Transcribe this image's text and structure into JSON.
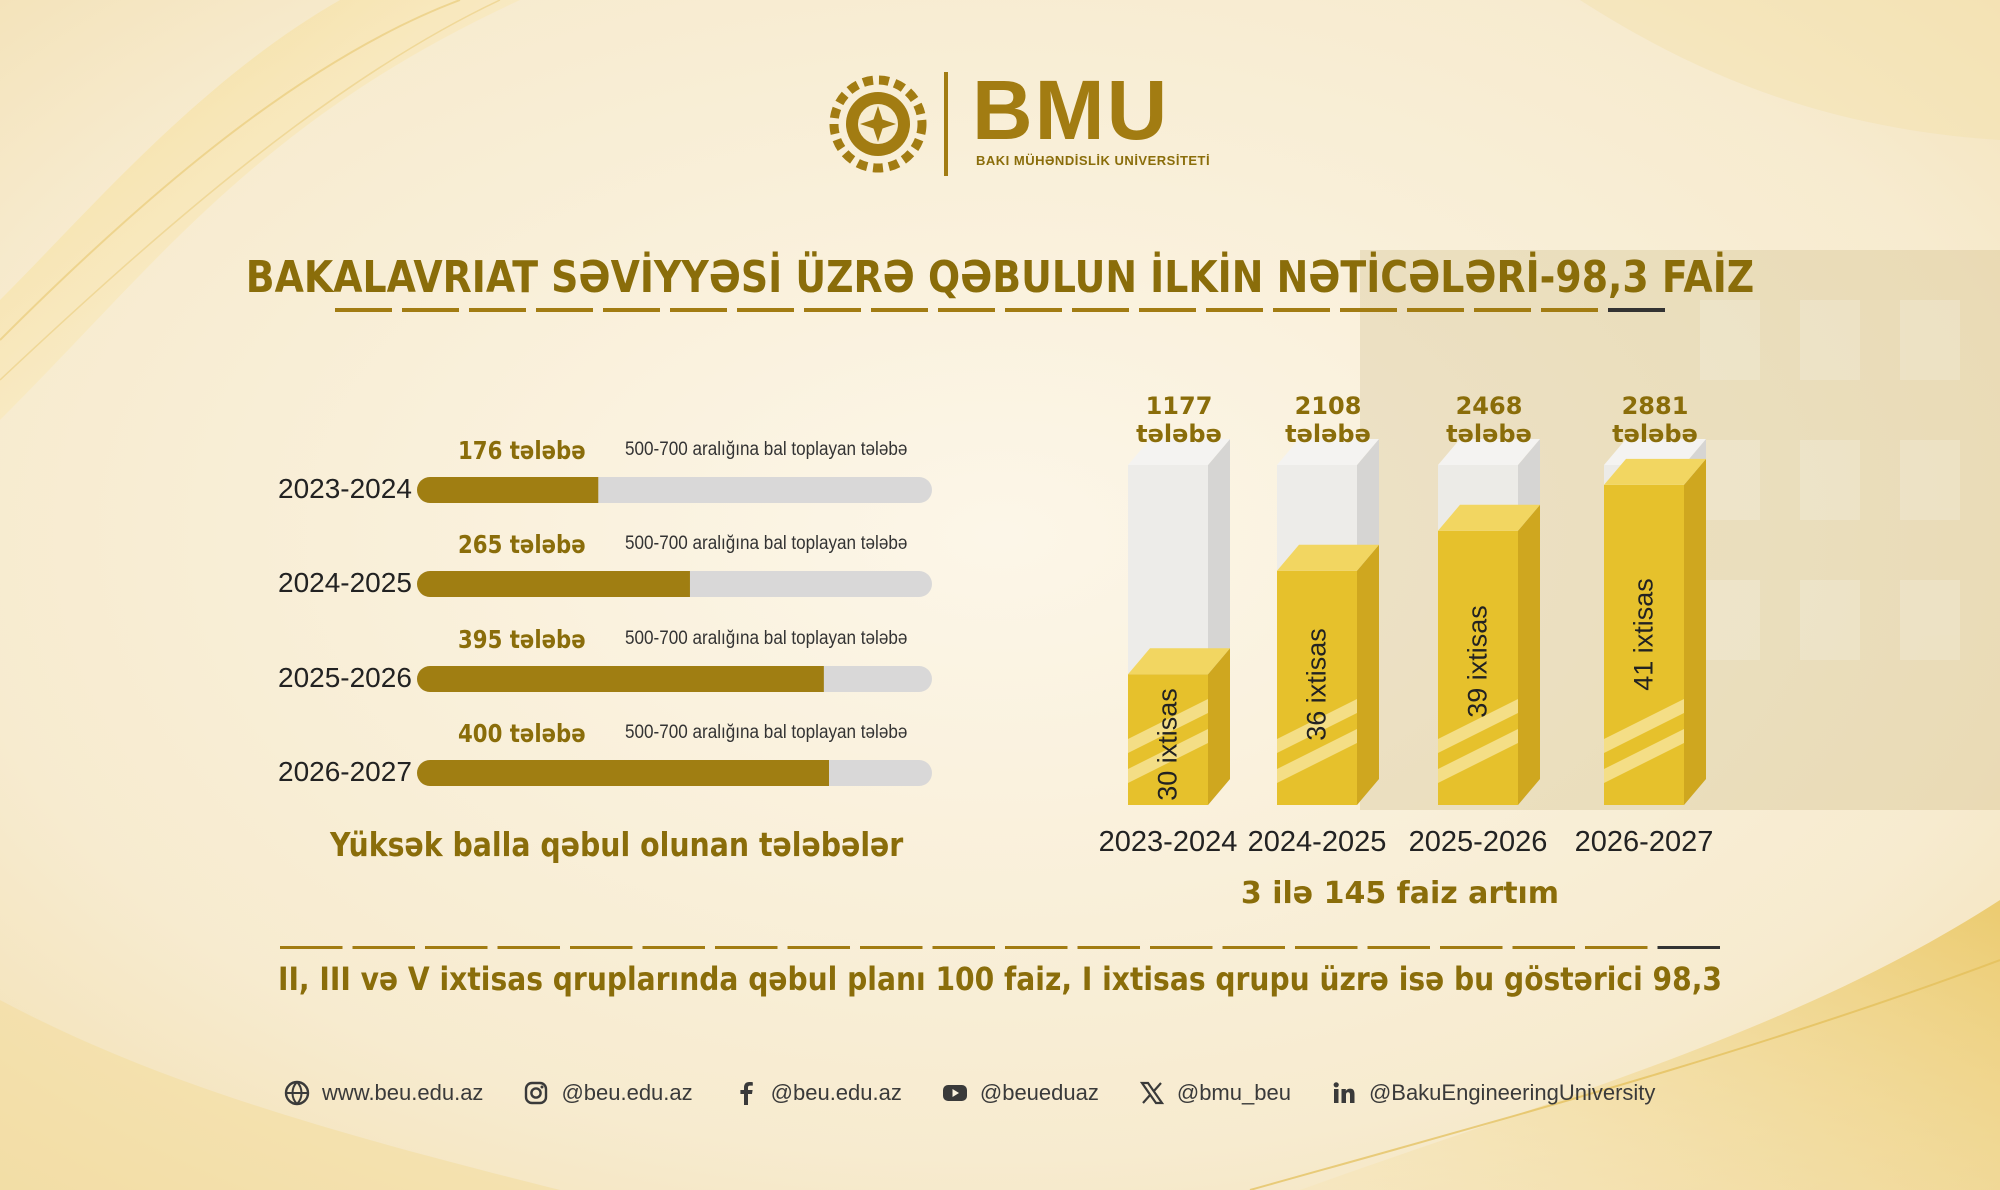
{
  "brand": {
    "name": "BMU",
    "subtitle": "BAKI MÜHƏNDİSLİK UNİVERSİTETİ"
  },
  "title": "BAKALAVRIAT SƏVİYYƏSİ ÜZRƏ QƏBULUN İLKİN NƏTİCƏLƏRİ-98,3 FAİZ",
  "colors": {
    "gold_dark": "#a07e12",
    "gold_bar": "#e6c12c",
    "track": "#d9d8d8",
    "text_gold": "#8a6d0a"
  },
  "chart_data": [
    {
      "type": "bar",
      "orientation": "horizontal",
      "title": "Yüksək balla qəbul olunan tələbələr",
      "categories": [
        "2023-2024",
        "2024-2025",
        "2025-2026",
        "2026-2027"
      ],
      "values": [
        176,
        265,
        395,
        400
      ],
      "value_labels": [
        "176 tələbə",
        "265 tələbə",
        "395 tələbə",
        "400 tələbə"
      ],
      "note": "500-700 aralığına bal toplayan tələbə",
      "xlim": [
        0,
        500
      ]
    },
    {
      "type": "bar",
      "orientation": "vertical",
      "title": "3 ilə 145 faiz artım",
      "categories": [
        "2023-2024",
        "2024-2025",
        "2025-2026",
        "2026-2027"
      ],
      "values": [
        1177,
        2108,
        2468,
        2881
      ],
      "value_labels": [
        "1177",
        "2108",
        "2468",
        "2881"
      ],
      "unit_label": "tələbə",
      "inner_labels": [
        "30 ixtisas",
        "36 ixtisas",
        "39 ixtisas",
        "41 ixtisas"
      ],
      "ylim": [
        0,
        3600
      ]
    }
  ],
  "footer_note": "II, III və V ixtisas qruplarında qəbul planı 100 faiz, I ixtisas qrupu üzrə isə bu göstərici 98,3",
  "social": [
    {
      "icon": "globe-icon",
      "text": "www.beu.edu.az"
    },
    {
      "icon": "instagram-icon",
      "text": "@beu.edu.az"
    },
    {
      "icon": "facebook-icon",
      "text": "@beu.edu.az"
    },
    {
      "icon": "youtube-icon",
      "text": "@beueduaz"
    },
    {
      "icon": "x-icon",
      "text": "@bmu_beu"
    },
    {
      "icon": "linkedin-icon",
      "text": "@BakuEngineeringUniversity"
    }
  ]
}
